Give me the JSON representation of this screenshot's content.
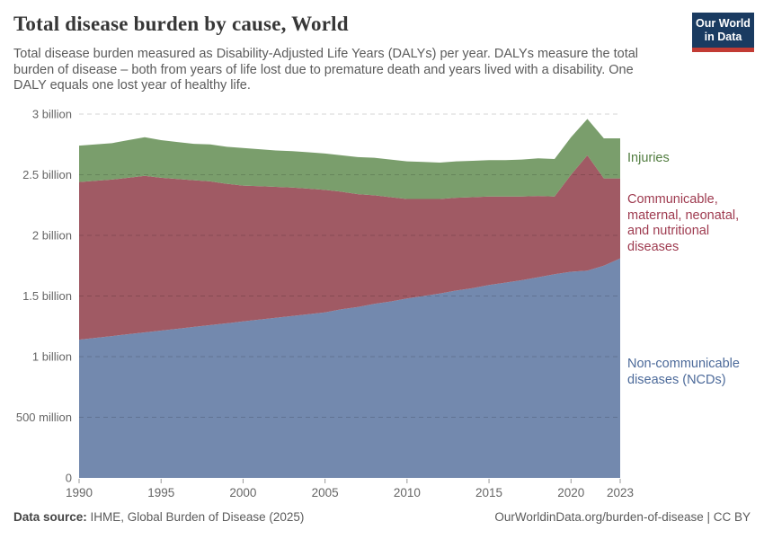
{
  "header": {
    "title": "Total disease burden by cause, World",
    "subtitle_lines": [
      "Total disease burden measured as Disability-Adjusted Life Years (DALYs) per year. DALYs measure the total",
      "burden of disease – both from years of life lost due to premature death and years lived with a disability. One",
      "DALY equals one lost year of healthy life."
    ],
    "logo": {
      "line1": "Our World",
      "line2": "in Data",
      "bg_color": "#1a3b61",
      "bar_color": "#c23b34"
    }
  },
  "chart_data": {
    "type": "area",
    "stacked": true,
    "title": "Total disease burden by cause, World",
    "unit": "DALYs per year",
    "ylim": [
      0,
      3
    ],
    "ylim_unit": "billion",
    "grid": true,
    "x": [
      1990,
      1991,
      1992,
      1993,
      1994,
      1995,
      1996,
      1997,
      1998,
      1999,
      2000,
      2001,
      2002,
      2003,
      2004,
      2005,
      2006,
      2007,
      2008,
      2009,
      2010,
      2011,
      2012,
      2013,
      2014,
      2015,
      2016,
      2017,
      2018,
      2019,
      2020,
      2021,
      2022,
      2023
    ],
    "series": [
      {
        "name": "Non-communicable diseases (NCDs)",
        "id": "ncd",
        "color": "#7389ae",
        "label_color": "#4c6a9a",
        "values_billion": [
          1.14,
          1.155,
          1.17,
          1.185,
          1.2,
          1.215,
          1.23,
          1.245,
          1.26,
          1.275,
          1.29,
          1.305,
          1.32,
          1.335,
          1.35,
          1.365,
          1.39,
          1.41,
          1.435,
          1.455,
          1.48,
          1.5,
          1.52,
          1.545,
          1.565,
          1.59,
          1.61,
          1.63,
          1.655,
          1.68,
          1.7,
          1.71,
          1.75,
          1.81
        ]
      },
      {
        "name": "Communicable, maternal, neonatal, and nutritional diseases",
        "id": "cmnn",
        "color": "#a05a64",
        "label_color": "#9e3a4f",
        "values_billion": [
          1.3,
          1.295,
          1.29,
          1.29,
          1.29,
          1.26,
          1.235,
          1.21,
          1.185,
          1.15,
          1.12,
          1.1,
          1.08,
          1.06,
          1.035,
          1.01,
          0.97,
          0.93,
          0.895,
          0.86,
          0.82,
          0.8,
          0.78,
          0.765,
          0.75,
          0.73,
          0.71,
          0.69,
          0.67,
          0.64,
          0.8,
          0.95,
          0.72,
          0.66
        ]
      },
      {
        "name": "Injuries",
        "id": "injuries",
        "color": "#7a9e6c",
        "label_color": "#527d40",
        "values_billion": [
          0.3,
          0.3,
          0.3,
          0.31,
          0.32,
          0.31,
          0.305,
          0.3,
          0.305,
          0.305,
          0.31,
          0.305,
          0.3,
          0.3,
          0.3,
          0.3,
          0.3,
          0.305,
          0.31,
          0.31,
          0.31,
          0.305,
          0.3,
          0.3,
          0.3,
          0.3,
          0.3,
          0.305,
          0.31,
          0.31,
          0.31,
          0.3,
          0.33,
          0.33
        ]
      }
    ],
    "x_ticks": [
      1990,
      1995,
      2000,
      2005,
      2010,
      2015,
      2020,
      2023
    ],
    "y_ticks": [
      {
        "value": 0,
        "label": "0"
      },
      {
        "value": 0.5,
        "label": "500 million"
      },
      {
        "value": 1,
        "label": "1 billion"
      },
      {
        "value": 1.5,
        "label": "1.5 billion"
      },
      {
        "value": 2,
        "label": "2 billion"
      },
      {
        "value": 2.5,
        "label": "2.5 billion"
      },
      {
        "value": 3,
        "label": "3 billion"
      }
    ],
    "legend_position": "right-of-plot"
  },
  "series_labels": {
    "injuries": "Injuries",
    "cmnn": "Communicable, maternal, neonatal, and nutritional diseases",
    "ncd": "Non-communicable diseases (NCDs)"
  },
  "footer": {
    "data_source_label": "Data source:",
    "data_source_value": " IHME, Global Burden of Disease (2025)",
    "right_text": "OurWorldinData.org/burden-of-disease | CC BY"
  }
}
